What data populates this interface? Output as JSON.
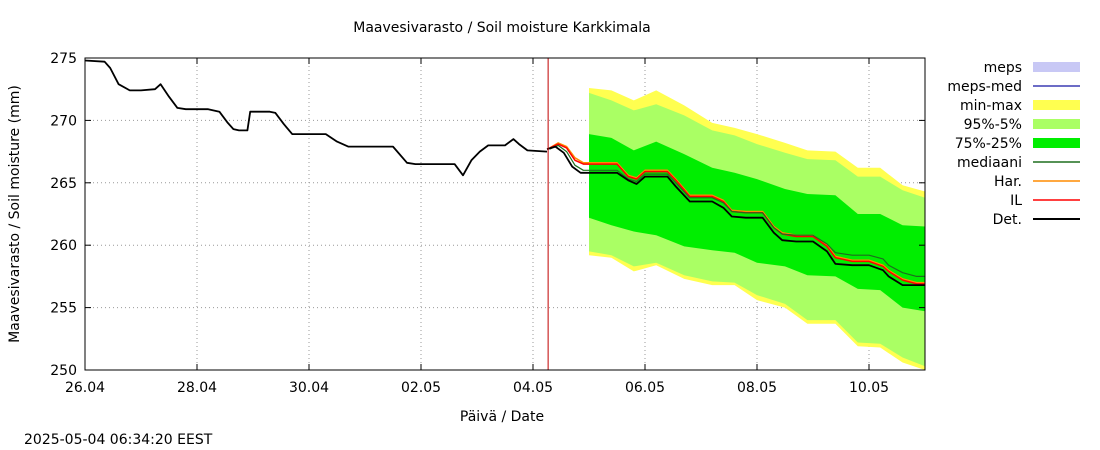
{
  "chart_data": {
    "type": "area",
    "title": "Maavesivarasto / Soil moisture   Karkkimala",
    "xlabel": "Päivä / Date",
    "ylabel": "Maavesivarasto / Soil moisture (mm)",
    "timestamp": "2025-05-04  06:34:20 EEST",
    "x_unit": "days since 26.04",
    "xlim": [
      0,
      15
    ],
    "ylim": [
      250,
      275
    ],
    "x_ticks": [
      {
        "x": 0,
        "label": "26.04"
      },
      {
        "x": 2,
        "label": "28.04"
      },
      {
        "x": 4,
        "label": "30.04"
      },
      {
        "x": 6,
        "label": "02.05"
      },
      {
        "x": 8,
        "label": "04.05"
      },
      {
        "x": 10,
        "label": "06.05"
      },
      {
        "x": 12,
        "label": "08.05"
      },
      {
        "x": 14,
        "label": "10.05"
      }
    ],
    "y_ticks": [
      250,
      255,
      260,
      265,
      270,
      275
    ],
    "grid": true,
    "legend_position": "right",
    "forecast_start_x": 8.27,
    "colors": {
      "meps": "#c8c8f5",
      "meps_med": "#3c3cb4",
      "min_max": "#ffff50",
      "p95_5": "#aaff64",
      "p75_25": "#00ee00",
      "mediaani": "#1e6e1e",
      "har": "#ff8c00",
      "il": "#ff0000",
      "det": "#000000",
      "vline": "#c00000"
    },
    "legend": [
      {
        "key": "meps",
        "label": "meps",
        "kind": "band"
      },
      {
        "key": "meps_med",
        "label": "meps-med",
        "kind": "line"
      },
      {
        "key": "min_max",
        "label": "min-max",
        "kind": "band"
      },
      {
        "key": "p95_5",
        "label": "95%-5%",
        "kind": "band"
      },
      {
        "key": "p75_25",
        "label": "75%-25%",
        "kind": "band"
      },
      {
        "key": "mediaani",
        "label": "mediaani",
        "kind": "line"
      },
      {
        "key": "har",
        "label": "Har.",
        "kind": "line"
      },
      {
        "key": "il",
        "label": "IL",
        "kind": "line"
      },
      {
        "key": "det",
        "label": "Det.",
        "kind": "line"
      }
    ],
    "series": {
      "det_history": {
        "x": [
          0,
          0.35,
          0.45,
          0.6,
          0.8,
          1.0,
          1.25,
          1.35,
          1.5,
          1.65,
          1.8,
          2.0,
          2.2,
          2.4,
          2.55,
          2.65,
          2.75,
          2.9,
          2.95,
          3.1,
          3.3,
          3.4,
          3.55,
          3.7,
          4.0,
          4.3,
          4.5,
          4.7,
          4.9,
          5.5,
          5.75,
          5.9,
          6.1,
          6.6,
          6.75,
          6.9,
          7.05,
          7.2,
          7.5,
          7.65,
          7.75,
          7.9,
          8.25
        ],
        "y": [
          274.8,
          274.7,
          274.2,
          272.9,
          272.4,
          272.4,
          272.5,
          272.9,
          271.9,
          271.0,
          270.9,
          270.9,
          270.9,
          270.7,
          269.8,
          269.3,
          269.2,
          269.2,
          270.7,
          270.7,
          270.7,
          270.6,
          269.7,
          268.9,
          268.9,
          268.9,
          268.3,
          267.9,
          267.9,
          267.9,
          266.6,
          266.5,
          266.5,
          266.5,
          265.6,
          266.8,
          267.5,
          268.0,
          268.0,
          268.5,
          268.1,
          267.6,
          267.5
        ]
      },
      "det_forecast": {
        "x": [
          8.25,
          8.4,
          8.55,
          8.7,
          8.85,
          9.0,
          9.5,
          9.7,
          9.85,
          10.0,
          10.25,
          10.4,
          10.55,
          10.8,
          11.2,
          11.4,
          11.55,
          11.8,
          12.1,
          12.3,
          12.45,
          12.7,
          13.0,
          13.25,
          13.4,
          13.7,
          14.0,
          14.25,
          14.35,
          14.6,
          14.85,
          15.0
        ],
        "y": [
          267.7,
          267.9,
          267.4,
          266.3,
          265.8,
          265.8,
          265.8,
          265.2,
          264.9,
          265.5,
          265.5,
          265.5,
          264.7,
          263.5,
          263.5,
          263.0,
          262.3,
          262.2,
          262.2,
          261.0,
          260.4,
          260.3,
          260.3,
          259.5,
          258.5,
          258.4,
          258.4,
          258.0,
          257.5,
          256.8,
          256.8,
          256.8
        ]
      },
      "il": {
        "x": [
          8.3,
          8.45,
          8.6,
          8.75,
          8.9,
          9.0,
          9.5,
          9.7,
          9.85,
          10.0,
          10.25,
          10.4,
          10.55,
          10.8,
          11.2,
          11.4,
          11.55,
          11.8,
          12.1,
          12.3,
          12.45,
          12.7,
          13.0,
          13.25,
          13.4,
          13.7,
          14.0,
          14.25,
          14.35,
          14.6,
          14.85,
          15.0
        ],
        "y": [
          267.8,
          268.1,
          267.8,
          266.8,
          266.5,
          266.5,
          266.5,
          265.5,
          265.3,
          265.9,
          265.9,
          265.9,
          265.2,
          263.9,
          263.9,
          263.5,
          262.7,
          262.6,
          262.6,
          261.4,
          260.9,
          260.7,
          260.7,
          259.9,
          259.0,
          258.7,
          258.7,
          258.3,
          257.9,
          257.2,
          256.9,
          256.9
        ]
      },
      "har": {
        "x": [
          8.3,
          8.45,
          8.6,
          8.75,
          8.9,
          9.0,
          9.5,
          9.7,
          9.85,
          10.0,
          10.25,
          10.4,
          10.55,
          10.8,
          11.2,
          11.4,
          11.55,
          11.8,
          12.1,
          12.3,
          12.45,
          12.7,
          13.0,
          13.25,
          13.4,
          13.7,
          14.0,
          14.25,
          14.35,
          14.6,
          14.85,
          15.0
        ],
        "y": [
          267.8,
          268.2,
          267.9,
          267.0,
          266.6,
          266.6,
          266.6,
          265.6,
          265.4,
          266.0,
          266.0,
          266.0,
          265.3,
          264.0,
          264.0,
          263.6,
          262.8,
          262.7,
          262.7,
          261.5,
          261.0,
          260.8,
          260.8,
          260.0,
          259.1,
          258.8,
          258.8,
          258.4,
          258.0,
          257.3,
          257.0,
          257.0
        ]
      },
      "mediaani": {
        "x": [
          8.3,
          8.45,
          8.6,
          8.75,
          8.9,
          9.0,
          9.5,
          9.7,
          9.85,
          10.0,
          10.25,
          10.4,
          10.55,
          10.8,
          11.2,
          11.4,
          11.55,
          11.8,
          12.1,
          12.3,
          12.45,
          12.7,
          13.0,
          13.25,
          13.4,
          13.7,
          14.0,
          14.25,
          14.35,
          14.6,
          14.85,
          15.0
        ],
        "y": [
          267.7,
          268.0,
          267.5,
          266.4,
          266.0,
          266.0,
          266.0,
          265.3,
          265.1,
          265.7,
          265.7,
          265.7,
          265.0,
          263.8,
          263.8,
          263.4,
          262.7,
          262.6,
          262.6,
          261.4,
          260.9,
          260.8,
          260.8,
          260.1,
          259.4,
          259.2,
          259.2,
          258.9,
          258.4,
          257.8,
          257.5,
          257.5
        ]
      },
      "min_max": {
        "x": [
          9.0,
          9.4,
          9.8,
          10.2,
          10.7,
          11.2,
          11.6,
          12.0,
          12.5,
          12.9,
          13.4,
          13.8,
          14.2,
          14.6,
          15.0
        ],
        "upper": [
          272.6,
          272.4,
          271.6,
          272.4,
          271.2,
          269.8,
          269.4,
          268.9,
          268.2,
          267.6,
          267.5,
          266.2,
          266.2,
          264.8,
          264.3
        ],
        "lower": [
          259.2,
          259.0,
          257.9,
          258.4,
          257.3,
          256.8,
          256.8,
          255.6,
          255.0,
          253.7,
          253.7,
          251.9,
          251.8,
          250.6,
          250.0
        ]
      },
      "p95_5": {
        "x": [
          9.0,
          9.4,
          9.8,
          10.2,
          10.7,
          11.2,
          11.6,
          12.0,
          12.5,
          12.9,
          13.4,
          13.8,
          14.2,
          14.6,
          15.0
        ],
        "upper": [
          272.2,
          271.6,
          270.8,
          271.3,
          270.4,
          269.2,
          268.8,
          268.1,
          267.4,
          266.9,
          266.8,
          265.5,
          265.5,
          264.4,
          263.8
        ],
        "lower": [
          259.5,
          259.2,
          258.3,
          258.6,
          257.6,
          257.1,
          257.0,
          256.0,
          255.3,
          254.0,
          254.0,
          252.2,
          252.1,
          251.0,
          250.3
        ]
      },
      "p75_25": {
        "x": [
          9.0,
          9.4,
          9.8,
          10.2,
          10.7,
          11.2,
          11.6,
          12.0,
          12.5,
          12.9,
          13.4,
          13.8,
          14.2,
          14.6,
          15.0
        ],
        "upper": [
          268.9,
          268.6,
          267.6,
          268.3,
          267.3,
          266.2,
          265.8,
          265.3,
          264.5,
          264.1,
          264.0,
          262.5,
          262.5,
          261.6,
          261.5
        ],
        "lower": [
          262.2,
          261.6,
          261.1,
          260.8,
          259.9,
          259.6,
          259.4,
          258.6,
          258.3,
          257.6,
          257.5,
          256.5,
          256.4,
          255.0,
          254.7
        ]
      }
    }
  }
}
